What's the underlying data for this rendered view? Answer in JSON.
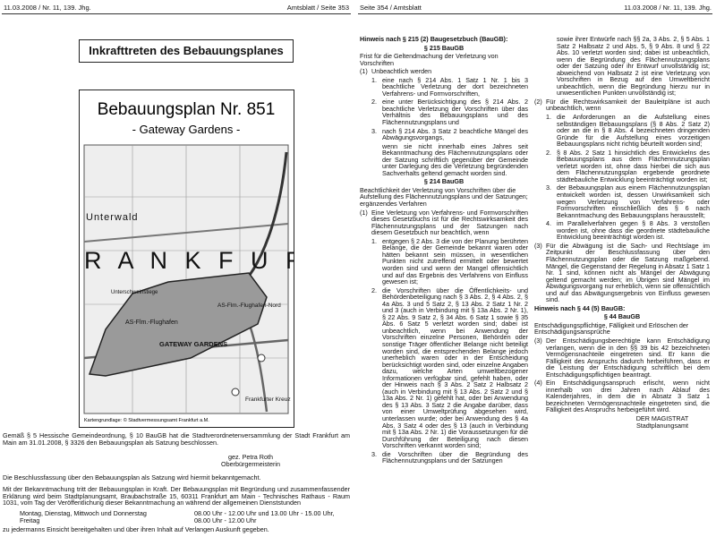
{
  "left_page": {
    "header": {
      "left": "11.03.2008 / Nr. 11, 139. Jhg.",
      "right": "Amtsblatt / Seite 353"
    },
    "title": "Inkrafttreten des Bebauungsplanes",
    "map": {
      "title": "Bebauungsplan Nr. 851",
      "subtitle": "- Gateway Gardens -",
      "labels": [
        "Unterwald",
        "R A N K F U R",
        "Unterschweinstiege",
        "AS-Flm.-Flughafen-Nord",
        "AS-Flm.-Flughafen",
        "GATEWAY GARDENS",
        "Frankfurter Kreuz"
      ],
      "caption": "Kartengrundlage: © Stadtvermessungsamt Frankfurt a.M."
    },
    "resolution": "Gemäß § 5 Hessische Gemeindeordnung, § 10 BauGB hat die Stadtverordnetenversammlung der Stadt Frankfurt am Main am 31.01.2008, § 3326 den Bebauungsplan als Satzung beschlossen.",
    "signature": [
      "gez. Petra Roth",
      "Oberbürgermeisterin"
    ],
    "announcement": "Die Beschlussfassung über den Bebauungsplan als Satzung wird hiermit bekanntgemacht.",
    "effect": "Mit der Bekanntmachung tritt der Bebauungsplan in Kraft. Der Bebauungsplan mit Begründung und zusammenfassender Erklärung wird beim Stadtplanungsamt, Braubachstraße 15, 60311 Frankfurt am Main - Technisches Rathaus - Raum 1031, vom Tag der Veröffentlichung dieser Bekanntmachung an während der allgemeinen Dienststunden",
    "hours": [
      [
        "Montag, Dienstag, Mittwoch und Donnerstag",
        "08.00 Uhr - 12.00 Uhr und 13.00 Uhr - 15.00 Uhr,"
      ],
      [
        "Freitag",
        "08.00 Uhr - 12.00 Uhr"
      ]
    ],
    "closing": "zu jedermanns Einsicht bereitgehalten und über ihren Inhalt auf Verlangen Auskunft gegeben."
  },
  "right_page": {
    "header": {
      "left": "Seite 354 / Amtsblatt",
      "right": "11.03.2008 / Nr. 11, 139. Jhg."
    },
    "columns": [
      [
        {
          "heading": "Hinweis nach § 215 (2) Baugesetzbuch (BauGB):"
        },
        {
          "center": "§ 215 BauGB"
        },
        {
          "text": "Frist für die Geltendmachung der Verletzung von Vorschriften"
        },
        {
          "para_num": "(1)",
          "text": "Unbeachtlich werden"
        },
        {
          "item_num": "1.",
          "text": "eine nach § 214 Abs. 1 Satz 1 Nr. 1 bis 3 beachtliche Verletzung der dort bezeichneten Verfahrens- und Formvorschriften,"
        },
        {
          "item_num": "2.",
          "text": "eine unter Berücksichtigung des § 214 Abs. 2 beachtliche Verletzung der Vorschriften über das Verhältnis des Bebauungsplans und des Flächennutzungsplans und"
        },
        {
          "item_num": "3.",
          "text": "nach § 214 Abs. 3 Satz 2 beachtliche Mängel des Abwägungsvorgangs,"
        },
        {
          "cont": "wenn sie nicht innerhalb eines Jahres seit Bekanntmachung des Flächennutzungsplans oder der Satzung schriftlich gegenüber der Gemeinde unter Darlegung des die Verletzung begründenden Sachverhalts geltend gemacht worden sind."
        },
        {
          "center": "§ 214 BauGB"
        },
        {
          "text": "Beachtlichkeit der Verletzung von Vorschriften über die Aufstellung des Flächennutzungsplans und der Satzungen; ergänzendes Verfahren"
        },
        {
          "para_num": "(1)",
          "text": "Eine Verletzung von Verfahrens- und Formvorschriften dieses Gesetzbuchs ist für die Rechtswirksamkeit des Flächennutzungsplans und der Satzungen nach diesem Gesetzbuch nur beachtlich, wenn"
        },
        {
          "item_num": "1.",
          "text": "entgegen § 2 Abs. 3 die von der Planung berührten Belange, die der Gemeinde bekannt waren oder hätten bekannt sein müssen, in wesentlichen Punkten nicht zutreffend ermittelt oder bewertet worden sind und wenn der Mangel offensichtlich und auf das Ergebnis des Verfahrens von Einfluss gewesen ist;"
        },
        {
          "item_num": "2.",
          "text": "die Vorschriften über die Öffentlichkeits- und Behördenbeteiligung nach § 3 Abs. 2, § 4 Abs. 2, § 4a Abs. 3 und 5 Satz 2, § 13 Abs. 2 Satz 1 Nr. 2 und 3 (auch in Verbindung mit § 13a Abs. 2 Nr. 1), § 22 Abs. 9 Satz 2, § 34 Abs. 6 Satz 1 sowie § 35 Abs. 6 Satz 5 verletzt worden sind; dabei ist unbeachtlich, wenn bei Anwendung der Vorschriften einzelne Personen, Behörden oder sonstige Träger öffentlicher Belange nicht beteiligt worden sind, die entsprechenden Belange jedoch unerheblich waren oder in der Entscheidung berücksichtigt worden sind, oder einzelne Angaben dazu, welche Arten umweltbezogener Informationen verfügbar sind, gefehlt haben, oder der Hinweis nach § 3 Abs. 2 Satz 2 Halbsatz 2 (auch in Verbindung mit § 13 Abs. 2 Satz 2 und § 13a Abs. 2 Nr. 1) gefehlt hat, oder bei Anwendung des § 13 Abs. 3 Satz 2 die Angabe darüber, dass von einer Umweltprüfung abgesehen wird, unterlassen wurde; oder bei Anwendung des § 4a Abs. 3 Satz 4 oder des § 13 (auch in Verbindung mit § 13a Abs. 2 Nr. 1) die Voraussetzungen für die Durchführung der Beteiligung nach diesen Vorschriften verkannt worden sind;"
        },
        {
          "item_num": "3.",
          "text": "die Vorschriften über die Begründung des Flächennutzungsplans und der Satzungen"
        }
      ],
      [
        {
          "cont": "sowie ihrer Entwürfe nach §§ 2a, 3 Abs. 2, § 5 Abs. 1 Satz 2 Halbsatz 2 und Abs. 5, § 9 Abs. 8 und § 22 Abs. 10 verletzt worden sind; dabei ist unbeachtlich, wenn die Begründung des Flächennutzungsplans oder der Satzung oder ihr Entwurf unvollständig ist; abweichend von Halbsatz 2 ist eine Verletzung von Vorschriften in Bezug auf den Umweltbericht unbeachtlich, wenn die Begründung hierzu nur in unwesentlichen Punkten unvollständig ist;"
        },
        {
          "para_num": "(2)",
          "text": "Für die Rechtswirksamkeit der Bauleitpläne ist auch unbeachtlich, wenn"
        },
        {
          "item_num": "1.",
          "text": "die Anforderungen an die Aufstellung eines selbständigen Bebauungsplans (§ 8 Abs. 2 Satz 2) oder an die in § 8 Abs. 4 bezeichneten dringenden Gründe für die Aufstellung eines vorzeitigen Bebauungsplans nicht richtig beurteilt worden sind;"
        },
        {
          "item_num": "2.",
          "text": "§ 8 Abs. 2 Satz 1 hinsichtlich des Entwickelns des Bebauungsplans aus dem Flächennutzungsplan verletzt worden ist, ohne dass hierbei die sich aus dem Flächennutzungsplan ergebende geordnete städtebauliche Entwicklung beeinträchtigt worden ist;"
        },
        {
          "item_num": "3.",
          "text": "der Bebauungsplan aus einem Flächennutzungsplan entwickelt worden ist, dessen Unwirksamkeit sich wegen Verletzung von Verfahrens- oder Formvorschriften einschließlich des § 6 nach Bekanntmachung des Bebauungsplans herausstellt;"
        },
        {
          "item_num": "4.",
          "text": "im Parallelverfahren gegen § 8 Abs. 3 verstoßen worden ist, ohne dass die geordnete städtebauliche Entwicklung beeinträchtigt worden ist."
        },
        {
          "para_num": "(3)",
          "text": "Für die Abwägung ist die Sach- und Rechtslage im Zeitpunkt der Beschlussfassung über den Flächennutzungsplan oder die Satzung maßgebend. Mängel, die Gegenstand der Regelung in Absatz 1 Satz 1 Nr. 1 sind, können nicht als Mängel der Abwägung geltend gemacht werden; im Übrigen sind Mängel im Abwägungsvorgang nur erheblich, wenn sie offensichtlich und auf das Abwägungsergebnis von Einfluss gewesen sind."
        },
        {
          "heading": "Hinweis nach § 44 (5) BauGB:"
        },
        {
          "center": "§ 44 BauGB"
        },
        {
          "text": "Entschädigungspflichtige, Fälligkeit und Erlöschen der Entschädigungsansprüche"
        },
        {
          "para_num": "(3)",
          "text": "Der Entschädigungsberechtigte kann Entschädigung verlangen, wenn die in den §§ 39 bis 42 bezeichneten Vermögensnachteile eingetreten sind. Er kann die Fälligkeit des Anspruchs dadurch herbeiführen, dass er die Leistung der Entschädigung schriftlich bei dem Entschädigungspflichtigen beantragt."
        },
        {
          "para_num": "(4)",
          "text": "Ein Entschädigungsanspruch erlischt, wenn nicht innerhalb von drei Jahren nach Ablauf des Kalenderjahres, in dem die in Absatz 3 Satz 1 bezeichneten Vermögensnachteile eingetreten sind, die Fälligkeit des Anspruchs herbeigeführt wird."
        },
        {
          "sign": "DER MAGISTRAT"
        },
        {
          "sign": "Stadtplanungsamt"
        }
      ]
    ]
  }
}
